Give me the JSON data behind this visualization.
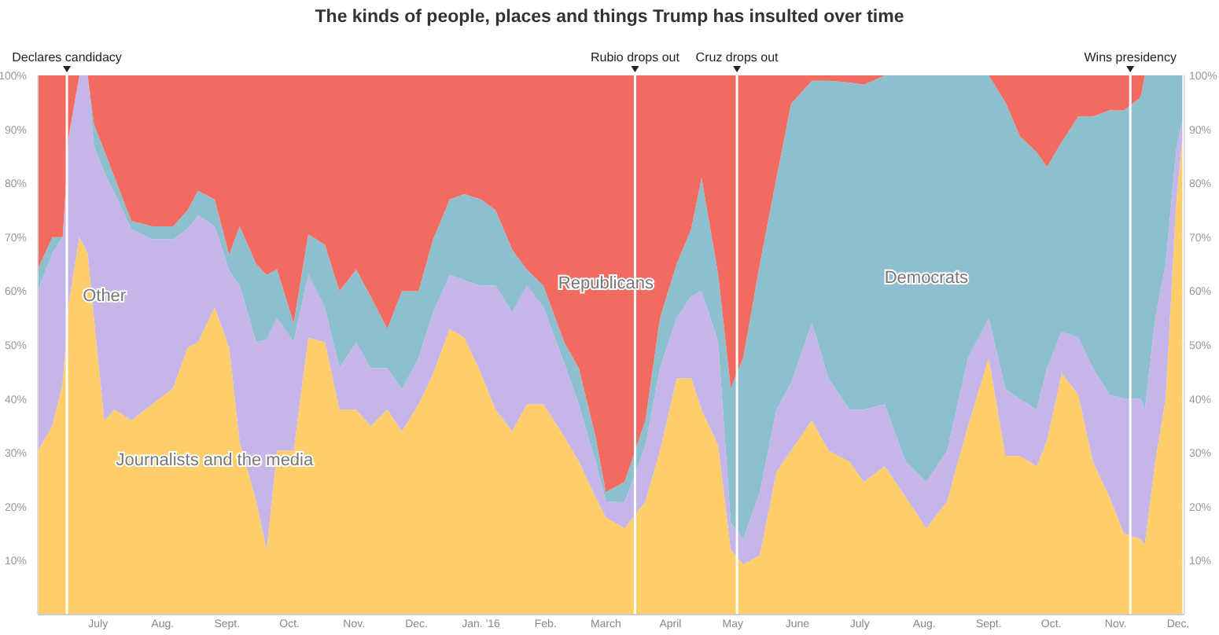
{
  "chart_data": {
    "type": "area",
    "title": "The kinds of people, places and things Trump has insulted over time",
    "stacked": true,
    "grid": true,
    "x": [
      "2015-06-02",
      "2015-06-09",
      "2015-06-14",
      "2015-06-17",
      "2015-06-22",
      "2015-06-26",
      "2015-06-29",
      "2015-07-04",
      "2015-07-09",
      "2015-07-17",
      "2015-07-27",
      "2015-08-06",
      "2015-08-13",
      "2015-08-18",
      "2015-08-26",
      "2015-09-02",
      "2015-09-07",
      "2015-09-15",
      "2015-09-20",
      "2015-09-25",
      "2015-10-03",
      "2015-10-10",
      "2015-10-18",
      "2015-10-25",
      "2015-11-02",
      "2015-11-09",
      "2015-11-17",
      "2015-11-24",
      "2015-12-02",
      "2015-12-09",
      "2015-12-17",
      "2015-12-24",
      "2016-01-01",
      "2016-01-08",
      "2016-01-16",
      "2016-01-23",
      "2016-01-31",
      "2016-02-10",
      "2016-02-17",
      "2016-02-25",
      "2016-03-01",
      "2016-03-10",
      "2016-03-20",
      "2016-03-27",
      "2016-04-04",
      "2016-04-11",
      "2016-04-16",
      "2016-04-24",
      "2016-04-30",
      "2016-05-06",
      "2016-05-14",
      "2016-05-22",
      "2016-05-29",
      "2016-06-08",
      "2016-06-16",
      "2016-06-26",
      "2016-07-03",
      "2016-07-13",
      "2016-07-23",
      "2016-08-02",
      "2016-08-12",
      "2016-08-22",
      "2016-09-01",
      "2016-09-09",
      "2016-09-16",
      "2016-09-24",
      "2016-09-29",
      "2016-10-06",
      "2016-10-14",
      "2016-10-21",
      "2016-10-29",
      "2016-11-05",
      "2016-11-13",
      "2016-11-15",
      "2016-11-20",
      "2016-11-25",
      "2016-11-30",
      "2016-12-03"
    ],
    "series": [
      {
        "name": "Journalists and the media",
        "color": "#ffcd69",
        "values": [
          30.4,
          35,
          43,
          58,
          70,
          67,
          55,
          36,
          38,
          36,
          39,
          42,
          49.5,
          50.5,
          57,
          49.5,
          32,
          21,
          12,
          30.4,
          30.4,
          51.4,
          50.5,
          38,
          38,
          35,
          38,
          34,
          39,
          44.7,
          53,
          51.4,
          44.7,
          38,
          34,
          39,
          39,
          33,
          28.4,
          21.8,
          18,
          16,
          21,
          30.4,
          43.8,
          43.8,
          38,
          31.3,
          12,
          9.3,
          11,
          26.5,
          30.4,
          36,
          30.4,
          28.4,
          24.6,
          27.5,
          21.8,
          16,
          21,
          35,
          47.6,
          29.4,
          29.4,
          27.5,
          32.3,
          44.7,
          40.8,
          28.4,
          21.8,
          15,
          14,
          13,
          28.4,
          40,
          76,
          88
        ]
      },
      {
        "name": "Other",
        "color": "#c5b5e9",
        "values": [
          29.6,
          32,
          27,
          31,
          30,
          33,
          32,
          46,
          40,
          35.5,
          30.6,
          27.6,
          22,
          23.5,
          15,
          14.3,
          29,
          29.5,
          39,
          24.6,
          20.1,
          11.6,
          6.5,
          7.7,
          12.5,
          10.7,
          7.7,
          7.8,
          8.6,
          11.3,
          10,
          10.6,
          16.3,
          23,
          22,
          22,
          18,
          13.6,
          10.6,
          6.6,
          3,
          4.8,
          10.3,
          15.3,
          11.2,
          15.2,
          22,
          19.2,
          5,
          4.7,
          11.7,
          11.5,
          12.6,
          18,
          13.4,
          9.6,
          13.4,
          11.5,
          6.6,
          8.6,
          9.4,
          12.6,
          7.4,
          12.4,
          10.6,
          10.5,
          13.4,
          7.7,
          10.6,
          17.3,
          19,
          25,
          26,
          25,
          26.6,
          25,
          10,
          3.6
        ]
      },
      {
        "name": "Democrats",
        "color": "#8ebfcf",
        "values": [
          4,
          3,
          0,
          0,
          0,
          0,
          4,
          4,
          3,
          1.5,
          2.4,
          2.4,
          3.5,
          4.6,
          5,
          2.9,
          11,
          14.5,
          12,
          9,
          3.5,
          7.5,
          11.6,
          14.3,
          13.5,
          13.3,
          7.3,
          18.2,
          12.4,
          13.6,
          14,
          16,
          16,
          14,
          11.7,
          3,
          4,
          3.9,
          6.7,
          4.6,
          1.7,
          3.8,
          4.7,
          9.3,
          10,
          12.5,
          21,
          12.5,
          25,
          33.6,
          42.3,
          43,
          51.7,
          45,
          55.2,
          60.7,
          60.3,
          61,
          71.6,
          75.4,
          69.6,
          52.4,
          45,
          53.2,
          48.7,
          47.8,
          37.3,
          35.2,
          41,
          46.7,
          52.7,
          53.5,
          56,
          62,
          45,
          35,
          14,
          8.4
        ]
      },
      {
        "name": "Republicans",
        "color": "#f26b60",
        "values": [
          36,
          30,
          30,
          11,
          0,
          0,
          9,
          14,
          19,
          27,
          28,
          28,
          25,
          21.4,
          23,
          33.3,
          28,
          35,
          37,
          36,
          46,
          29.5,
          31.4,
          40,
          36,
          41,
          47,
          40,
          40,
          30.4,
          23,
          22,
          23,
          25,
          32.3,
          36,
          39,
          49.5,
          54.3,
          67,
          77.3,
          75.4,
          64,
          45,
          35,
          28.5,
          19,
          37,
          58,
          52.4,
          35,
          19,
          5.3,
          1,
          1,
          1.3,
          1.7,
          0,
          0,
          0,
          0,
          0,
          0,
          5,
          11.3,
          14.2,
          17,
          12.4,
          7.6,
          7.6,
          6.5,
          6.5,
          4,
          0,
          0,
          0,
          0,
          0
        ]
      }
    ],
    "xlim": [
      "2015-06-02",
      "2016-12-04"
    ],
    "xticks": [
      {
        "value": "2015-07-01",
        "label": "July"
      },
      {
        "value": "2015-08-01",
        "label": "Aug."
      },
      {
        "value": "2015-09-01",
        "label": "Sept."
      },
      {
        "value": "2015-10-01",
        "label": "Oct."
      },
      {
        "value": "2015-11-01",
        "label": "Nov."
      },
      {
        "value": "2015-12-01",
        "label": "Dec."
      },
      {
        "value": "2016-01-01",
        "label": "Jan. '16"
      },
      {
        "value": "2016-02-01",
        "label": "Feb."
      },
      {
        "value": "2016-03-01",
        "label": "March"
      },
      {
        "value": "2016-04-01",
        "label": "April"
      },
      {
        "value": "2016-05-01",
        "label": "May"
      },
      {
        "value": "2016-06-01",
        "label": "June"
      },
      {
        "value": "2016-07-01",
        "label": "July"
      },
      {
        "value": "2016-08-01",
        "label": "Aug."
      },
      {
        "value": "2016-09-01",
        "label": "Sept."
      },
      {
        "value": "2016-10-01",
        "label": "Oct."
      },
      {
        "value": "2016-11-01",
        "label": "Nov."
      },
      {
        "value": "2016-12-01",
        "label": "Dec."
      }
    ],
    "ylim": [
      0,
      100
    ],
    "yticks": [
      {
        "value": 10,
        "label": "10%"
      },
      {
        "value": 20,
        "label": "20%"
      },
      {
        "value": 30,
        "label": "30%"
      },
      {
        "value": 40,
        "label": "40%"
      },
      {
        "value": 50,
        "label": "50%"
      },
      {
        "value": 60,
        "label": "60%"
      },
      {
        "value": 70,
        "label": "70%"
      },
      {
        "value": 80,
        "label": "80%"
      },
      {
        "value": 90,
        "label": "90%"
      },
      {
        "value": 100,
        "label": "100%"
      }
    ],
    "y2lim": [
      0,
      100
    ],
    "y2ticks": [
      {
        "value": 10,
        "label": "10%"
      },
      {
        "value": 20,
        "label": "20%"
      },
      {
        "value": 30,
        "label": "30%"
      },
      {
        "value": 40,
        "label": "40%"
      },
      {
        "value": 50,
        "label": "50%"
      },
      {
        "value": 60,
        "label": "60%"
      },
      {
        "value": 70,
        "label": "70%"
      },
      {
        "value": 80,
        "label": "80%"
      },
      {
        "value": 90,
        "label": "90%"
      },
      {
        "value": 100,
        "label": "100%"
      }
    ],
    "ref_lines": [
      {
        "axis": "x",
        "value": "2015-06-16",
        "label": "Declares candidacy",
        "color": "#ffffff"
      },
      {
        "axis": "x",
        "value": "2016-03-15",
        "label": "Rubio drops out",
        "color": "#ffffff"
      },
      {
        "axis": "x",
        "value": "2016-05-03",
        "label": "Cruz drops out",
        "color": "#ffffff"
      },
      {
        "axis": "x",
        "value": "2016-11-08",
        "label": "Wins presidency",
        "color": "#ffffff"
      }
    ]
  }
}
